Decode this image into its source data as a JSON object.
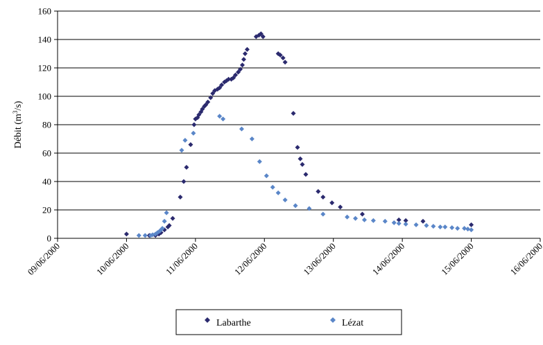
{
  "chart_data": {
    "type": "scatter",
    "xlabel": "",
    "ylabel": "Débit (m",
    "ylabel_sup": "3",
    "ylabel_end": "/s)",
    "ylim": [
      0,
      160
    ],
    "yticks": [
      "0",
      "20",
      "40",
      "60",
      "80",
      "100",
      "120",
      "140",
      "160"
    ],
    "xticks": [
      "09/06/2000",
      "10/06/2000",
      "11/06/2000",
      "12/06/2000",
      "13/06/2000",
      "14/06/2000",
      "15/06/2000",
      "16/06/2000"
    ],
    "xlim_days": [
      0,
      7
    ],
    "grid": "horizontal",
    "legend_position": "bottom",
    "series": [
      {
        "name": "Labarthe",
        "color": "#2b2a6e",
        "marker": "diamond",
        "points": [
          [
            1.0,
            3
          ],
          [
            1.33,
            2
          ],
          [
            1.42,
            2
          ],
          [
            1.47,
            3
          ],
          [
            1.5,
            4
          ],
          [
            1.55,
            6
          ],
          [
            1.6,
            8
          ],
          [
            1.62,
            9
          ],
          [
            1.67,
            14
          ],
          [
            1.78,
            29
          ],
          [
            1.83,
            40
          ],
          [
            1.87,
            50
          ],
          [
            1.93,
            66
          ],
          [
            1.98,
            80
          ],
          [
            2.0,
            84
          ],
          [
            2.03,
            85
          ],
          [
            2.05,
            87
          ],
          [
            2.08,
            89
          ],
          [
            2.1,
            91
          ],
          [
            2.13,
            93
          ],
          [
            2.15,
            94
          ],
          [
            2.18,
            96
          ],
          [
            2.22,
            99
          ],
          [
            2.25,
            102
          ],
          [
            2.28,
            104
          ],
          [
            2.32,
            105
          ],
          [
            2.35,
            106
          ],
          [
            2.38,
            108
          ],
          [
            2.42,
            110
          ],
          [
            2.45,
            111
          ],
          [
            2.48,
            112
          ],
          [
            2.52,
            112
          ],
          [
            2.55,
            113
          ],
          [
            2.58,
            115
          ],
          [
            2.62,
            117
          ],
          [
            2.65,
            119
          ],
          [
            2.68,
            122
          ],
          [
            2.7,
            126
          ],
          [
            2.72,
            130
          ],
          [
            2.75,
            133
          ],
          [
            2.88,
            142
          ],
          [
            2.92,
            143
          ],
          [
            2.95,
            144
          ],
          [
            2.98,
            142
          ],
          [
            3.2,
            130
          ],
          [
            3.23,
            129
          ],
          [
            3.27,
            127
          ],
          [
            3.3,
            124
          ],
          [
            3.42,
            88
          ],
          [
            3.48,
            64
          ],
          [
            3.52,
            56
          ],
          [
            3.55,
            52
          ],
          [
            3.6,
            45
          ],
          [
            3.78,
            33
          ],
          [
            3.85,
            29
          ],
          [
            3.98,
            25
          ],
          [
            4.1,
            22
          ],
          [
            4.42,
            17
          ],
          [
            4.95,
            13
          ],
          [
            5.05,
            12.5
          ],
          [
            5.3,
            12
          ],
          [
            6.0,
            9.5
          ]
        ]
      },
      {
        "name": "Lézat",
        "color": "#5a86c8",
        "marker": "diamond",
        "points": [
          [
            1.18,
            2
          ],
          [
            1.27,
            2
          ],
          [
            1.35,
            2
          ],
          [
            1.38,
            2.5
          ],
          [
            1.42,
            3
          ],
          [
            1.45,
            4
          ],
          [
            1.48,
            5
          ],
          [
            1.5,
            6
          ],
          [
            1.52,
            7
          ],
          [
            1.55,
            12
          ],
          [
            1.58,
            18
          ],
          [
            1.8,
            62
          ],
          [
            1.85,
            69
          ],
          [
            1.97,
            74
          ],
          [
            2.35,
            86
          ],
          [
            2.4,
            84
          ],
          [
            2.67,
            77
          ],
          [
            2.82,
            70
          ],
          [
            2.93,
            54
          ],
          [
            3.03,
            44
          ],
          [
            3.12,
            36
          ],
          [
            3.2,
            32
          ],
          [
            3.3,
            27
          ],
          [
            3.45,
            23
          ],
          [
            3.65,
            21
          ],
          [
            3.85,
            17
          ],
          [
            4.2,
            15
          ],
          [
            4.32,
            14
          ],
          [
            4.45,
            13
          ],
          [
            4.58,
            12.5
          ],
          [
            4.75,
            12
          ],
          [
            4.88,
            11
          ],
          [
            4.95,
            10.5
          ],
          [
            5.05,
            10
          ],
          [
            5.2,
            9.5
          ],
          [
            5.35,
            9
          ],
          [
            5.45,
            8.5
          ],
          [
            5.55,
            8
          ],
          [
            5.62,
            8
          ],
          [
            5.72,
            7.5
          ],
          [
            5.8,
            7
          ],
          [
            5.9,
            7
          ],
          [
            5.95,
            6.5
          ],
          [
            6.0,
            6
          ]
        ]
      }
    ]
  }
}
